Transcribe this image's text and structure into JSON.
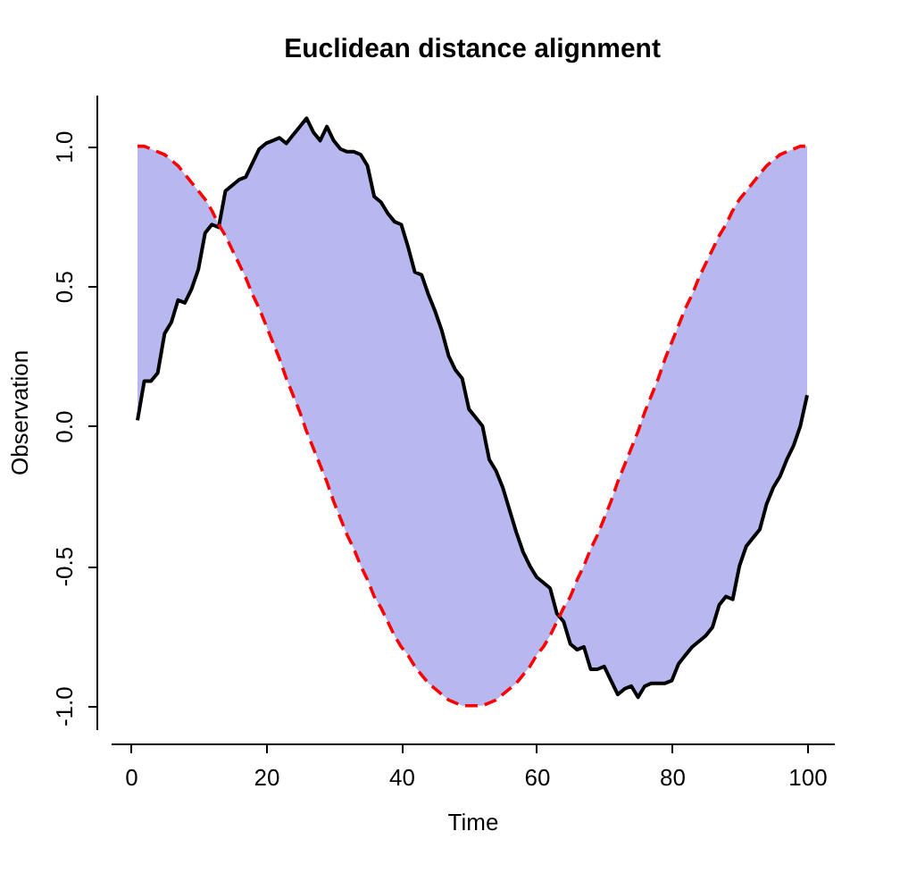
{
  "chart_data": {
    "type": "line",
    "title": "Euclidean distance alignment",
    "xlabel": "Time",
    "ylabel": "Observation",
    "x": [
      1,
      2,
      3,
      4,
      5,
      6,
      7,
      8,
      9,
      10,
      11,
      12,
      13,
      14,
      15,
      16,
      17,
      18,
      19,
      20,
      21,
      22,
      23,
      24,
      25,
      26,
      27,
      28,
      29,
      30,
      31,
      32,
      33,
      34,
      35,
      36,
      37,
      38,
      39,
      40,
      41,
      42,
      43,
      44,
      45,
      46,
      47,
      48,
      49,
      50,
      51,
      52,
      53,
      54,
      55,
      56,
      57,
      58,
      59,
      60,
      61,
      62,
      63,
      64,
      65,
      66,
      67,
      68,
      69,
      70,
      71,
      72,
      73,
      74,
      75,
      76,
      77,
      78,
      79,
      80,
      81,
      82,
      83,
      84,
      85,
      86,
      87,
      88,
      89,
      90,
      91,
      92,
      93,
      94,
      95,
      96,
      97,
      98,
      99,
      100
    ],
    "series": [
      {
        "color": "#000000",
        "line_style": "solid",
        "values": [
          0.02,
          0.16,
          0.16,
          0.19,
          0.33,
          0.37,
          0.45,
          0.44,
          0.49,
          0.56,
          0.69,
          0.72,
          0.71,
          0.84,
          0.86,
          0.88,
          0.89,
          0.94,
          0.99,
          1.01,
          1.02,
          1.03,
          1.01,
          1.04,
          1.07,
          1.1,
          1.05,
          1.02,
          1.07,
          1.02,
          0.99,
          0.98,
          0.98,
          0.97,
          0.93,
          0.82,
          0.8,
          0.76,
          0.73,
          0.72,
          0.64,
          0.55,
          0.54,
          0.47,
          0.41,
          0.34,
          0.25,
          0.2,
          0.17,
          0.06,
          0.03,
          0.0,
          -0.12,
          -0.16,
          -0.22,
          -0.3,
          -0.38,
          -0.45,
          -0.5,
          -0.54,
          -0.56,
          -0.58,
          -0.67,
          -0.7,
          -0.78,
          -0.8,
          -0.79,
          -0.87,
          -0.87,
          -0.86,
          -0.91,
          -0.96,
          -0.94,
          -0.93,
          -0.97,
          -0.93,
          -0.92,
          -0.92,
          -0.92,
          -0.91,
          -0.85,
          -0.82,
          -0.79,
          -0.77,
          -0.75,
          -0.72,
          -0.64,
          -0.61,
          -0.62,
          -0.5,
          -0.43,
          -0.4,
          -0.37,
          -0.28,
          -0.22,
          -0.18,
          -0.12,
          -0.07,
          0.0,
          0.11
        ],
        "lower": [
          1.0,
          1.0,
          0.99,
          0.98,
          0.97,
          0.95,
          0.93,
          0.9,
          0.87,
          0.84,
          0.81,
          0.77,
          0.72,
          0.68,
          0.63,
          0.58,
          0.53,
          0.47,
          0.42,
          0.36,
          0.3,
          0.24,
          0.17,
          0.11,
          0.05,
          -0.02,
          -0.08,
          -0.14,
          -0.2,
          -0.27,
          -0.33,
          -0.39,
          -0.44,
          -0.5,
          -0.55,
          -0.61,
          -0.65,
          -0.7,
          -0.75,
          -0.79,
          -0.82,
          -0.86,
          -0.89,
          -0.92,
          -0.94,
          -0.96,
          -0.98,
          -0.99,
          -1.0,
          -1.0,
          -1.0,
          -1.0,
          -0.99,
          -0.98,
          -0.96,
          -0.94,
          -0.92,
          -0.89,
          -0.86,
          -0.82,
          -0.79,
          -0.75,
          -0.7,
          -0.65,
          -0.61,
          -0.55,
          -0.5,
          -0.44,
          -0.39,
          -0.33,
          -0.27,
          -0.2,
          -0.14,
          -0.08,
          -0.02,
          0.05,
          0.11,
          0.17,
          0.24,
          0.3,
          0.36,
          0.42,
          0.47,
          0.53,
          0.58,
          0.63,
          0.68,
          0.72,
          0.77,
          0.81,
          0.84,
          0.87,
          0.9,
          0.93,
          0.95,
          0.97,
          0.98,
          0.99,
          1.0,
          1.0
        ],
        "upper": [
          0.02,
          0.16,
          0.16,
          0.19,
          0.33,
          0.37,
          0.45,
          0.44,
          0.49,
          0.56,
          0.69,
          0.72,
          0.71,
          0.84,
          0.86,
          0.88,
          0.89,
          0.94,
          0.99,
          1.01,
          1.02,
          1.03,
          1.01,
          1.04,
          1.07,
          1.1,
          1.05,
          1.02,
          1.07,
          1.02,
          0.99,
          0.98,
          0.98,
          0.97,
          0.93,
          0.82,
          0.8,
          0.76,
          0.73,
          0.72,
          0.64,
          0.55,
          0.54,
          0.47,
          0.41,
          0.34,
          0.25,
          0.2,
          0.17,
          0.06,
          0.03,
          0.0,
          -0.12,
          -0.16,
          -0.22,
          -0.3,
          -0.38,
          -0.45,
          -0.5,
          -0.54,
          -0.56,
          -0.58,
          -0.67,
          -0.7,
          -0.78,
          -0.8,
          -0.79,
          -0.87,
          -0.87,
          -0.86,
          -0.91,
          -0.96,
          -0.94,
          -0.93,
          -0.97,
          -0.93,
          -0.92,
          -0.92,
          -0.92,
          -0.91,
          -0.85,
          -0.82,
          -0.79,
          -0.77,
          -0.75,
          -0.72,
          -0.64,
          -0.61,
          -0.62,
          -0.5,
          -0.43,
          -0.4,
          -0.37,
          -0.28,
          -0.22,
          -0.18,
          -0.12,
          -0.07,
          0.0,
          0.11
        ]
      },
      {
        "color": "#ff0000",
        "line_style": "dashed",
        "values": [
          1.0,
          1.0,
          0.99,
          0.98,
          0.97,
          0.95,
          0.93,
          0.9,
          0.87,
          0.84,
          0.81,
          0.77,
          0.72,
          0.68,
          0.63,
          0.58,
          0.53,
          0.47,
          0.42,
          0.36,
          0.3,
          0.24,
          0.17,
          0.11,
          0.05,
          -0.02,
          -0.08,
          -0.14,
          -0.2,
          -0.27,
          -0.33,
          -0.39,
          -0.44,
          -0.5,
          -0.55,
          -0.61,
          -0.65,
          -0.7,
          -0.75,
          -0.79,
          -0.82,
          -0.86,
          -0.89,
          -0.92,
          -0.94,
          -0.96,
          -0.98,
          -0.99,
          -1.0,
          -1.0,
          -1.0,
          -1.0,
          -0.99,
          -0.98,
          -0.96,
          -0.94,
          -0.92,
          -0.89,
          -0.86,
          -0.82,
          -0.79,
          -0.75,
          -0.7,
          -0.65,
          -0.61,
          -0.55,
          -0.5,
          -0.44,
          -0.39,
          -0.33,
          -0.27,
          -0.2,
          -0.14,
          -0.08,
          -0.02,
          0.05,
          0.11,
          0.17,
          0.24,
          0.3,
          0.36,
          0.42,
          0.47,
          0.53,
          0.58,
          0.63,
          0.68,
          0.72,
          0.77,
          0.81,
          0.84,
          0.87,
          0.9,
          0.93,
          0.95,
          0.97,
          0.98,
          0.99,
          1.0,
          1.0
        ]
      }
    ],
    "xlim": [
      -2.96,
      103.96
    ],
    "xticks": [
      0,
      20,
      40,
      60,
      80,
      100
    ],
    "ylim": [
      -1.084,
      1.184
    ],
    "yticks": [
      {
        "value": -1,
        "label": "-1.0"
      },
      {
        "value": -0.5,
        "label": "-0.5"
      },
      {
        "value": 0,
        "label": "0.0"
      },
      {
        "value": 0.5,
        "label": "0.5"
      },
      {
        "value": 1,
        "label": "1.0"
      }
    ],
    "grid": false
  }
}
